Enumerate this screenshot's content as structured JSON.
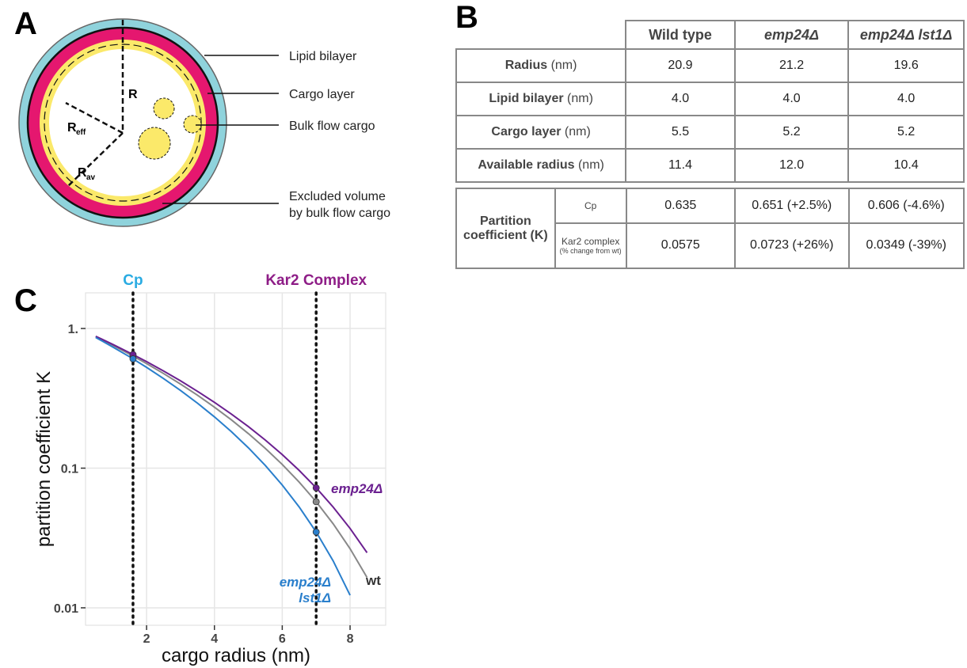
{
  "panel_a": {
    "letter": "A",
    "labels": {
      "lipid_bilayer": "Lipid bilayer",
      "cargo_layer": "Cargo layer",
      "bulk_flow_cargo": "Bulk flow cargo",
      "excluded_volume": [
        "Excluded volume",
        "by bulk flow cargo"
      ]
    },
    "radii": {
      "r": "R",
      "r_eff": {
        "main": "R",
        "sub": "eff"
      },
      "r_av": {
        "main": "R",
        "sub": "av"
      }
    }
  },
  "panel_b": {
    "letter": "B",
    "columns": [
      "Wild type",
      "emp24Δ",
      "emp24Δ lst1Δ"
    ],
    "rows": [
      {
        "name": "Radius",
        "unit": "(nm)",
        "values": [
          "20.9",
          "21.2",
          "19.6"
        ]
      },
      {
        "name": "Lipid bilayer",
        "unit": "(nm)",
        "values": [
          "4.0",
          "4.0",
          "4.0"
        ]
      },
      {
        "name": "Cargo layer",
        "unit": "(nm)",
        "values": [
          "5.5",
          "5.2",
          "5.2"
        ]
      },
      {
        "name": "Available radius",
        "unit": "(nm)",
        "values": [
          "11.4",
          "12.0",
          "10.4"
        ]
      }
    ],
    "partition": {
      "label": "Partition coefficient (K)",
      "rows": [
        {
          "name": "Cp",
          "values": [
            "0.635",
            "0.651 (+2.5%)",
            "0.606 (-4.6%)"
          ]
        },
        {
          "name": "Kar2 complex",
          "note": "(% change from wt)",
          "values": [
            "0.0575",
            "0.0723 (+26%)",
            "0.0349 (-39%)"
          ]
        }
      ]
    }
  },
  "panel_c": {
    "letter": "C"
  },
  "chart_data": {
    "type": "line",
    "x_label": "cargo radius (nm)",
    "y_label": "partition coefficient K",
    "log_y": true,
    "grid": true,
    "x": [
      0.5,
      1.0,
      1.5,
      2.0,
      2.5,
      3.0,
      3.5,
      4.0,
      4.5,
      5.0,
      5.5,
      6.0,
      6.5,
      7.0,
      7.5,
      8.0,
      8.5
    ],
    "points_x": [
      1.6,
      7
    ],
    "series": [
      {
        "name": "wt",
        "color": "#888888",
        "values": [
          0.874,
          0.759,
          0.655,
          0.561,
          0.476,
          0.4,
          0.333,
          0.2735,
          0.2218,
          0.1769,
          0.1386,
          0.1063,
          0.0794,
          0.0575,
          0.04,
          0.0265,
          0.0165
        ],
        "points": [
          0.635,
          0.0575
        ]
      },
      {
        "name": "emp24Δ",
        "color": "#6b2090",
        "values": [
          0.88,
          0.77,
          0.67,
          0.579,
          0.496,
          0.422,
          0.355,
          0.296,
          0.244,
          0.1985,
          0.1589,
          0.125,
          0.0963,
          0.0723,
          0.0527,
          0.037,
          0.0248
        ],
        "points": [
          0.651,
          0.0723
        ]
      },
      {
        "name": "emp24Δ lst1Δ",
        "color": "#2a7fcc",
        "values": [
          0.863,
          0.738,
          0.627,
          0.527,
          0.438,
          0.36,
          0.292,
          0.233,
          0.1826,
          0.14,
          0.1046,
          0.0757,
          0.0527,
          0.0349,
          0.0217,
          0.0123,
          null
        ],
        "points": [
          0.606,
          0.0349
        ]
      }
    ],
    "vlines": [
      {
        "x": 1.6,
        "label": "Cp",
        "color": "#29abe2"
      },
      {
        "x": 7,
        "label": "Kar2 Complex",
        "color": "#8e1d87"
      }
    ],
    "xlim": [
      0.2,
      9.05
    ],
    "ylim": [
      0.0075,
      1.8
    ],
    "xticks": [
      2,
      4,
      6,
      8
    ],
    "yticks": [
      {
        "value": 1,
        "label": "1."
      },
      0.1,
      0.01
    ]
  }
}
